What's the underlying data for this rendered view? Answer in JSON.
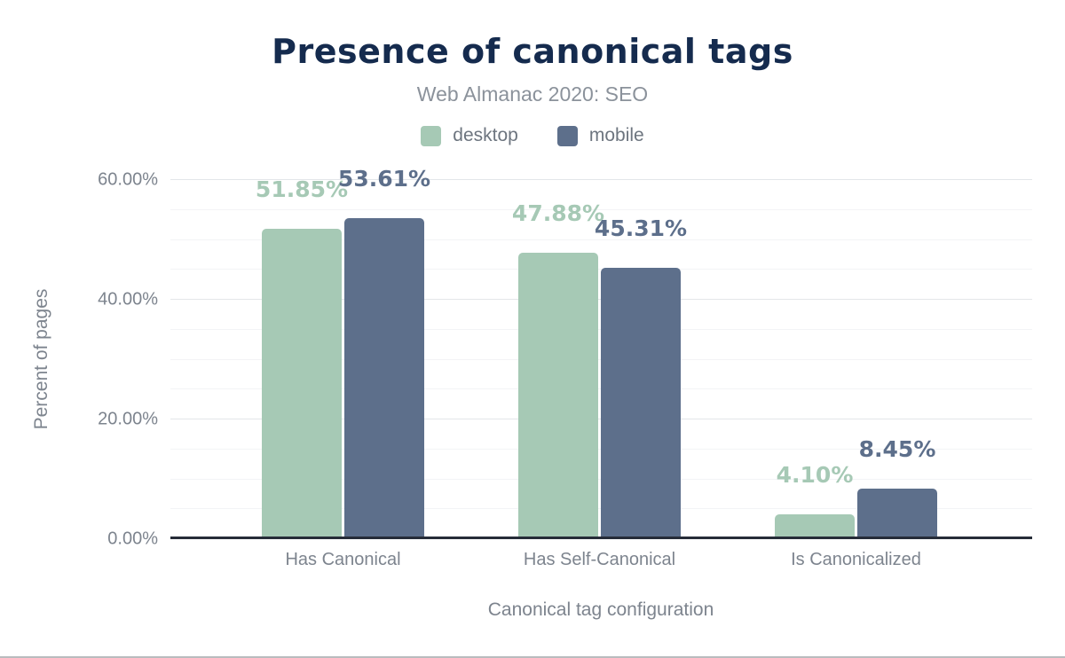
{
  "chart_data": {
    "type": "bar",
    "title": "Presence of canonical tags",
    "subtitle": "Web Almanac 2020: SEO",
    "xlabel": "Canonical tag configuration",
    "ylabel": "Percent of pages",
    "categories": [
      "Has Canonical",
      "Has Self-Canonical",
      "Is Canonicalized"
    ],
    "series": [
      {
        "name": "desktop",
        "values": [
          51.85,
          47.88,
          4.1
        ],
        "labels": [
          "51.85%",
          "47.88%",
          "4.10%"
        ],
        "color": "#a6c9b5"
      },
      {
        "name": "mobile",
        "values": [
          53.61,
          45.31,
          8.45
        ],
        "labels": [
          "53.61%",
          "45.31%",
          "8.45%"
        ],
        "color": "#5d6f8b"
      }
    ],
    "ylim": [
      0,
      60
    ],
    "yticks": [
      {
        "value": 0,
        "label": "0.00%"
      },
      {
        "value": 20,
        "label": "20.00%"
      },
      {
        "value": 40,
        "label": "40.00%"
      },
      {
        "value": 60,
        "label": "60.00%"
      }
    ],
    "minor_tick_step": 5,
    "grid": true,
    "legend_position": "top",
    "colors": {
      "title_text": "#152b4e",
      "subtitle_text": "#8b929b",
      "axis_text": "#7d848e",
      "legend_text": "#6d757f",
      "baseline": "#262c38",
      "major_gridline": "#e3e6e9",
      "minor_gridline": "#f3f4f6"
    }
  }
}
